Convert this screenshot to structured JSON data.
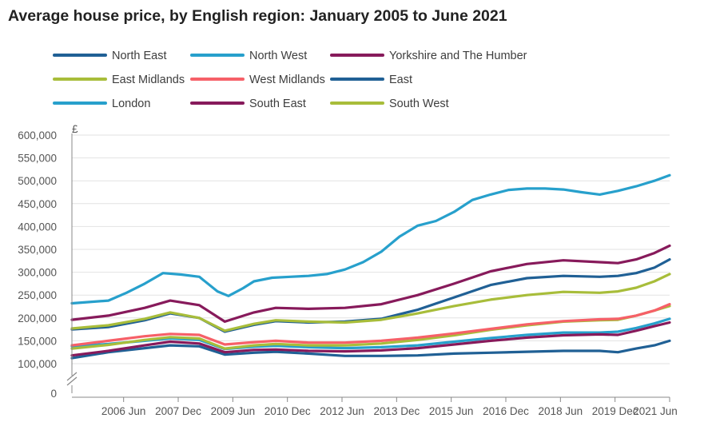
{
  "chart_data": {
    "type": "line",
    "title": "Average house price, by English region: January 2005 to June 2021",
    "ylabel": "£",
    "xlabel": "",
    "ylim": [
      0,
      600000
    ],
    "xlim": [
      2005.0,
      2021.42
    ],
    "grid": true,
    "legend_position": "top",
    "y_ticks": [
      {
        "value": 0,
        "label": "0"
      },
      {
        "value": 100000,
        "label": "100,000"
      },
      {
        "value": 150000,
        "label": "150,000"
      },
      {
        "value": 200000,
        "label": "200,000"
      },
      {
        "value": 250000,
        "label": "250,000"
      },
      {
        "value": 300000,
        "label": "300,000"
      },
      {
        "value": 350000,
        "label": "350,000"
      },
      {
        "value": 400000,
        "label": "400,000"
      },
      {
        "value": 450000,
        "label": "450,000"
      },
      {
        "value": 500000,
        "label": "500,000"
      },
      {
        "value": 550000,
        "label": "550,000"
      },
      {
        "value": 600000,
        "label": "600,000"
      }
    ],
    "x_ticks": [
      {
        "value": 2006.42,
        "label": "2006 Jun"
      },
      {
        "value": 2007.92,
        "label": "2007 Dec"
      },
      {
        "value": 2009.42,
        "label": "2009 Jun"
      },
      {
        "value": 2010.92,
        "label": "2010 Dec"
      },
      {
        "value": 2012.42,
        "label": "2012 Jun"
      },
      {
        "value": 2013.92,
        "label": "2013 Dec"
      },
      {
        "value": 2015.42,
        "label": "2015 Jun"
      },
      {
        "value": 2016.92,
        "label": "2016 Dec"
      },
      {
        "value": 2018.42,
        "label": "2018 Jun"
      },
      {
        "value": 2019.92,
        "label": "2019 Dec"
      },
      {
        "value": 2021.42,
        "label": "2021 Jun"
      }
    ],
    "series": [
      {
        "name": "North East",
        "color": "#206095",
        "x": [
          2005.0,
          2006.0,
          2007.0,
          2007.7,
          2008.5,
          2009.2,
          2010.0,
          2010.6,
          2011.5,
          2012.5,
          2013.5,
          2014.5,
          2015.5,
          2016.5,
          2017.5,
          2018.5,
          2019.5,
          2020.0,
          2020.5,
          2021.0,
          2021.42
        ],
        "y": [
          112000,
          125000,
          134000,
          140000,
          138000,
          120000,
          124000,
          126000,
          122000,
          117000,
          117000,
          118000,
          122000,
          124000,
          126000,
          128000,
          128000,
          125000,
          133000,
          140000,
          150000
        ]
      },
      {
        "name": "North West",
        "color": "#27a0cc",
        "x": [
          2005.0,
          2006.0,
          2007.0,
          2007.7,
          2008.5,
          2009.2,
          2010.0,
          2010.6,
          2011.5,
          2012.5,
          2013.5,
          2014.5,
          2015.5,
          2016.5,
          2017.5,
          2018.5,
          2019.5,
          2020.0,
          2020.5,
          2021.0,
          2021.42
        ],
        "y": [
          138000,
          143000,
          150000,
          155000,
          152000,
          132000,
          137000,
          139000,
          136000,
          134000,
          136000,
          140000,
          148000,
          156000,
          163000,
          168000,
          168000,
          170000,
          178000,
          188000,
          198000
        ]
      },
      {
        "name": "Yorkshire and The Humber",
        "color": "#871a5b",
        "x": [
          2005.0,
          2006.0,
          2007.0,
          2007.7,
          2008.5,
          2009.2,
          2010.0,
          2010.6,
          2011.5,
          2012.5,
          2013.5,
          2014.5,
          2015.5,
          2016.5,
          2017.5,
          2018.5,
          2019.5,
          2020.0,
          2020.5,
          2021.0,
          2021.42
        ],
        "y": [
          118000,
          128000,
          140000,
          148000,
          144000,
          125000,
          130000,
          131000,
          128000,
          127000,
          129000,
          134000,
          142000,
          150000,
          157000,
          162000,
          164000,
          163000,
          172000,
          182000,
          190000
        ]
      },
      {
        "name": "East Midlands",
        "color": "#a8bd3a",
        "x": [
          2005.0,
          2006.0,
          2007.0,
          2007.7,
          2008.5,
          2009.2,
          2010.0,
          2010.6,
          2011.5,
          2012.5,
          2013.5,
          2014.5,
          2015.5,
          2016.5,
          2017.5,
          2018.5,
          2019.5,
          2020.0,
          2020.5,
          2021.0,
          2021.42
        ],
        "y": [
          133000,
          141000,
          152000,
          158000,
          155000,
          133000,
          140000,
          143000,
          140000,
          140000,
          144000,
          152000,
          162000,
          174000,
          184000,
          192000,
          195000,
          196000,
          205000,
          216000,
          226000
        ]
      },
      {
        "name": "West Midlands",
        "color": "#f66068",
        "x": [
          2005.0,
          2006.0,
          2007.0,
          2007.7,
          2008.5,
          2009.2,
          2010.0,
          2010.6,
          2011.5,
          2012.5,
          2013.5,
          2014.5,
          2015.5,
          2016.5,
          2017.5,
          2018.5,
          2019.5,
          2020.0,
          2020.5,
          2021.0,
          2021.42
        ],
        "y": [
          140000,
          150000,
          160000,
          165000,
          163000,
          142000,
          147000,
          150000,
          146000,
          146000,
          150000,
          157000,
          166000,
          176000,
          186000,
          193000,
          197000,
          198000,
          205000,
          216000,
          230000
        ]
      },
      {
        "name": "East",
        "color": "#206095",
        "x": [
          2005.0,
          2006.0,
          2007.0,
          2007.7,
          2008.5,
          2009.2,
          2010.0,
          2010.6,
          2011.5,
          2012.5,
          2013.5,
          2014.5,
          2015.5,
          2016.5,
          2017.5,
          2018.5,
          2019.5,
          2020.0,
          2020.5,
          2021.0,
          2021.42
        ],
        "y": [
          175000,
          180000,
          195000,
          210000,
          200000,
          170000,
          185000,
          193000,
          190000,
          192000,
          198000,
          218000,
          245000,
          272000,
          287000,
          292000,
          290000,
          292000,
          298000,
          310000,
          328000
        ]
      },
      {
        "name": "London",
        "color": "#27a0cc",
        "x": [
          2005.0,
          2006.0,
          2006.5,
          2007.0,
          2007.5,
          2008.0,
          2008.5,
          2009.0,
          2009.3,
          2009.7,
          2010.0,
          2010.5,
          2011.0,
          2011.5,
          2012.0,
          2012.5,
          2013.0,
          2013.5,
          2014.0,
          2014.5,
          2015.0,
          2015.5,
          2016.0,
          2016.5,
          2017.0,
          2017.5,
          2018.0,
          2018.5,
          2019.0,
          2019.5,
          2020.0,
          2020.5,
          2021.0,
          2021.42
        ],
        "y": [
          232000,
          238000,
          255000,
          275000,
          298000,
          295000,
          290000,
          258000,
          248000,
          265000,
          280000,
          288000,
          290000,
          292000,
          296000,
          306000,
          322000,
          345000,
          378000,
          402000,
          412000,
          432000,
          458000,
          470000,
          480000,
          483000,
          483000,
          481000,
          475000,
          470000,
          478000,
          488000,
          500000,
          512000
        ]
      },
      {
        "name": "South East",
        "color": "#871a5b",
        "x": [
          2005.0,
          2006.0,
          2007.0,
          2007.7,
          2008.5,
          2009.2,
          2010.0,
          2010.6,
          2011.5,
          2012.5,
          2013.5,
          2014.5,
          2015.5,
          2016.5,
          2017.5,
          2018.5,
          2019.5,
          2020.0,
          2020.5,
          2021.0,
          2021.42
        ],
        "y": [
          196000,
          205000,
          222000,
          238000,
          228000,
          192000,
          212000,
          222000,
          220000,
          222000,
          230000,
          250000,
          275000,
          302000,
          318000,
          326000,
          322000,
          320000,
          328000,
          342000,
          358000
        ]
      },
      {
        "name": "South West",
        "color": "#a8bd3a",
        "x": [
          2005.0,
          2006.0,
          2007.0,
          2007.7,
          2008.5,
          2009.2,
          2010.0,
          2010.6,
          2011.5,
          2012.5,
          2013.5,
          2014.5,
          2015.5,
          2016.5,
          2017.5,
          2018.5,
          2019.5,
          2020.0,
          2020.5,
          2021.0,
          2021.42
        ],
        "y": [
          177000,
          184000,
          198000,
          212000,
          200000,
          172000,
          187000,
          195000,
          192000,
          190000,
          196000,
          210000,
          226000,
          240000,
          250000,
          257000,
          255000,
          258000,
          266000,
          280000,
          296000
        ]
      }
    ]
  }
}
